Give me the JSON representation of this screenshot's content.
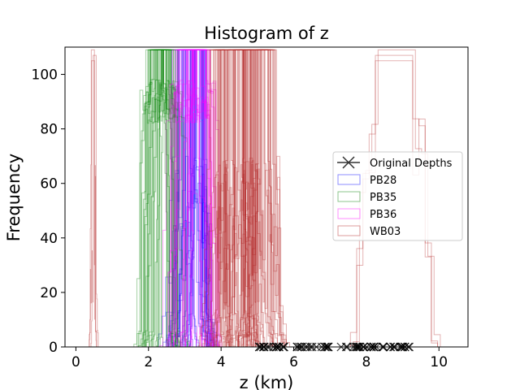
{
  "chart_data": {
    "type": "histogram",
    "title": "Histogram of z",
    "xlabel": "z (km)",
    "ylabel": "Frequency",
    "xlim": [
      -0.3,
      10.8
    ],
    "ylim": [
      0,
      110
    ],
    "x_ticks": [
      0,
      2,
      4,
      6,
      8,
      10
    ],
    "y_ticks": [
      0,
      20,
      40,
      60,
      80,
      100
    ],
    "grid": false,
    "legend_position": "center-right",
    "series": [
      {
        "name": "Original Depths",
        "kind": "markers",
        "marker": "x",
        "color": "#000000",
        "x_range": [
          5.0,
          9.2
        ],
        "y": 0
      },
      {
        "name": "PB28",
        "kind": "step-histograms",
        "color": "#0000ff",
        "center_range": [
          2.9,
          3.5
        ],
        "peak": 109,
        "mid_level": 12
      },
      {
        "name": "PB35",
        "kind": "step-histograms",
        "color": "#008000",
        "center_range": [
          2.1,
          2.6
        ],
        "peak": 109,
        "mid_level": 82
      },
      {
        "name": "PB36",
        "kind": "step-histograms",
        "color": "#ff00ff",
        "center_range": [
          2.9,
          3.5
        ],
        "peak": 109,
        "mid_level": 82
      },
      {
        "name": "WB03",
        "kind": "step-histograms",
        "color": "#b22222",
        "center_range": [
          3.8,
          5.3
        ],
        "peak": 109,
        "mid_level": 12,
        "outliers": [
          {
            "center": 0.5,
            "peak": 109
          },
          {
            "center": 8.8,
            "peak": 109
          }
        ]
      }
    ]
  }
}
